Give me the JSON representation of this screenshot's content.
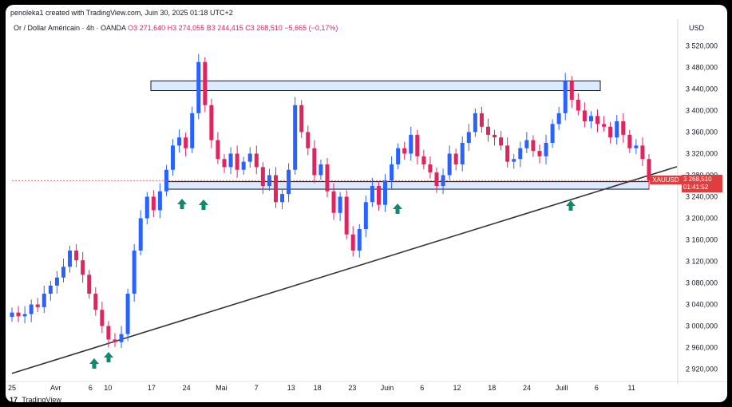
{
  "header": {
    "credit": "penoleka1 created with TradingView.com, Juin 30, 2025 01:18 UTC+2",
    "symbol_line": "Or / Dollar Américain · 4h · OANDA",
    "open": "O3 271,640",
    "high": "H3 274,055",
    "low": "B3 244,415",
    "close": "C3 268,510",
    "change": "−5,665 (−0,17%)",
    "currency": "USD"
  },
  "badges": {
    "symbol": "XAUUSD",
    "last_price": "3 268,510",
    "countdown": "01:41:52"
  },
  "footer": {
    "logo": "17",
    "brand": "TradingView"
  },
  "colors": {
    "up": "#2962ff",
    "down": "#e0245e",
    "accent_red": "#e03e3e",
    "box_fill": "#dbeafe",
    "arrow": "#0f8a6c"
  },
  "icons": [
    "up-arrow-icon"
  ],
  "chart_data": {
    "type": "line",
    "title": "",
    "xlabel": "",
    "ylabel": "",
    "ylim": [
      2900,
      3540
    ],
    "y_ticks": [
      "3 520,000",
      "3 480,000",
      "3 440,000",
      "3 400,000",
      "3 360,000",
      "3 320,000",
      "3 280,000",
      "3 240,000",
      "3 200,000",
      "3 160,000",
      "3 120,000",
      "3 080,000",
      "3 040,000",
      "3 000,000",
      "2 960,000",
      "2 920,000"
    ],
    "y_tick_values": [
      3520,
      3480,
      3440,
      3400,
      3360,
      3320,
      3280,
      3240,
      3200,
      3160,
      3120,
      3080,
      3040,
      3000,
      2960,
      2920
    ],
    "x_ticks": [
      "25",
      "Avr",
      "6",
      "10",
      "17",
      "24",
      "Mai",
      "7",
      "13",
      "18",
      "23",
      "Juin",
      "6",
      "12",
      "18",
      "24",
      "Juill",
      "6",
      "11"
    ],
    "x_tick_index": [
      0,
      10,
      18,
      22,
      32,
      40,
      48,
      56,
      64,
      70,
      78,
      86,
      94,
      102,
      110,
      118,
      126,
      134,
      142
    ],
    "series": [
      {
        "values": [
          3025,
          3018,
          3022,
          3040,
          3035,
          3060,
          3075,
          3090,
          3110,
          3140,
          3122,
          3095,
          3060,
          3030,
          3000,
          2975,
          2970,
          2985,
          3060,
          3140,
          3200,
          3240,
          3215,
          3250,
          3290,
          3335,
          3350,
          3330,
          3395,
          3490,
          3410,
          3345,
          3310,
          3295,
          3320,
          3290,
          3305,
          3320,
          3295,
          3260,
          3280,
          3230,
          3245,
          3290,
          3410,
          3360,
          3330,
          3280,
          3300,
          3250,
          3210,
          3240,
          3170,
          3140,
          3180,
          3230,
          3260,
          3225,
          3270,
          3300,
          3330,
          3320,
          3355,
          3315,
          3300,
          3285,
          3260,
          3280,
          3320,
          3300,
          3340,
          3360,
          3395,
          3370,
          3355,
          3350,
          3335,
          3305,
          3310,
          3330,
          3345,
          3325,
          3315,
          3340,
          3375,
          3395,
          3455,
          3420,
          3400,
          3380,
          3390,
          3375,
          3370,
          3350,
          3380,
          3355,
          3330,
          3335,
          3310,
          3270
        ],
        "extra_note": ""
      }
    ],
    "annotations": {
      "resistance_zone": [
        3437,
        3455
      ],
      "support_zone": [
        3254,
        3268
      ],
      "trendline": {
        "start": [
          0,
          2912
        ],
        "end": [
          99,
          3275
        ]
      }
    }
  }
}
